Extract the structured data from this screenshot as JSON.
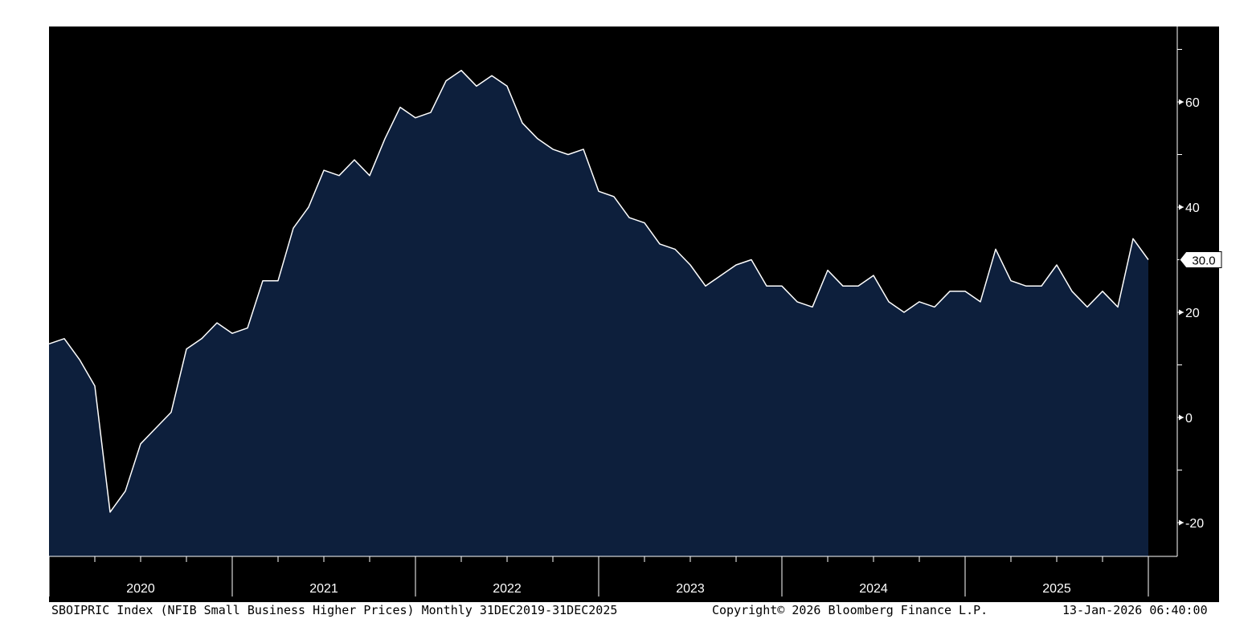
{
  "chart_data": {
    "type": "area",
    "series": [
      {
        "x": [
          "Dec 2019",
          "Jan 2020",
          "Feb 2020",
          "Mar 2020",
          "Apr 2020",
          "May 2020",
          "Jun 2020",
          "Jul 2020",
          "Aug 2020",
          "Sep 2020",
          "Oct 2020",
          "Nov 2020",
          "Dec 2020",
          "Jan 2021",
          "Feb 2021",
          "Mar 2021",
          "Apr 2021",
          "May 2021",
          "Jun 2021",
          "Jul 2021",
          "Aug 2021",
          "Sep 2021",
          "Oct 2021",
          "Nov 2021",
          "Dec 2021",
          "Jan 2022",
          "Feb 2022",
          "Mar 2022",
          "Apr 2022",
          "May 2022",
          "Jun 2022",
          "Jul 2022",
          "Aug 2022",
          "Sep 2022",
          "Oct 2022",
          "Nov 2022",
          "Dec 2022",
          "Jan 2023",
          "Feb 2023",
          "Mar 2023",
          "Apr 2023",
          "May 2023",
          "Jun 2023",
          "Jul 2023",
          "Aug 2023",
          "Sep 2023",
          "Oct 2023",
          "Nov 2023",
          "Dec 2023",
          "Jan 2024",
          "Feb 2024",
          "Mar 2024",
          "Apr 2024",
          "May 2024",
          "Jun 2024",
          "Jul 2024",
          "Aug 2024",
          "Sep 2024",
          "Oct 2024",
          "Nov 2024",
          "Dec 2024",
          "Jan 2025",
          "Feb 2025",
          "Mar 2025",
          "Apr 2025",
          "May 2025",
          "Jun 2025",
          "Jul 2025",
          "Aug 2025",
          "Sep 2025",
          "Oct 2025",
          "Nov 2025",
          "Dec 2025"
        ],
        "values": [
          14,
          15,
          11,
          6,
          -18,
          -14,
          -5,
          -2,
          1,
          13,
          15,
          18,
          16,
          17,
          26,
          26,
          36,
          40,
          47,
          46,
          49,
          46,
          53,
          59,
          57,
          58,
          64,
          66,
          63,
          65,
          63,
          56,
          53,
          51,
          50,
          51,
          43,
          42,
          38,
          37,
          33,
          32,
          29,
          25,
          27,
          29,
          30,
          25,
          25,
          22,
          21,
          28,
          25,
          25,
          27,
          22,
          20,
          22,
          21,
          24,
          24,
          22,
          32,
          26,
          25,
          25,
          29,
          24,
          21,
          24,
          21,
          34,
          30
        ]
      }
    ],
    "x_axis_labels": [
      "2020",
      "2021",
      "2022",
      "2023",
      "2024",
      "2025"
    ],
    "y_ticks": [
      60,
      40,
      20,
      0,
      -20
    ],
    "ylim": [
      -26,
      74
    ],
    "last_value_label": "30.0",
    "grid": false,
    "colors": {
      "background": "#000000",
      "area_fill": "#0d1f3c",
      "line": "#ffffff",
      "axis": "#ffffff"
    }
  },
  "footer": {
    "description": "SBOIPRIC Index (NFIB Small Business Higher Prices) Monthly 31DEC2019-31DEC2025",
    "copyright": "Copyright© 2026 Bloomberg Finance L.P.",
    "timestamp": "13-Jan-2026 06:40:00"
  }
}
